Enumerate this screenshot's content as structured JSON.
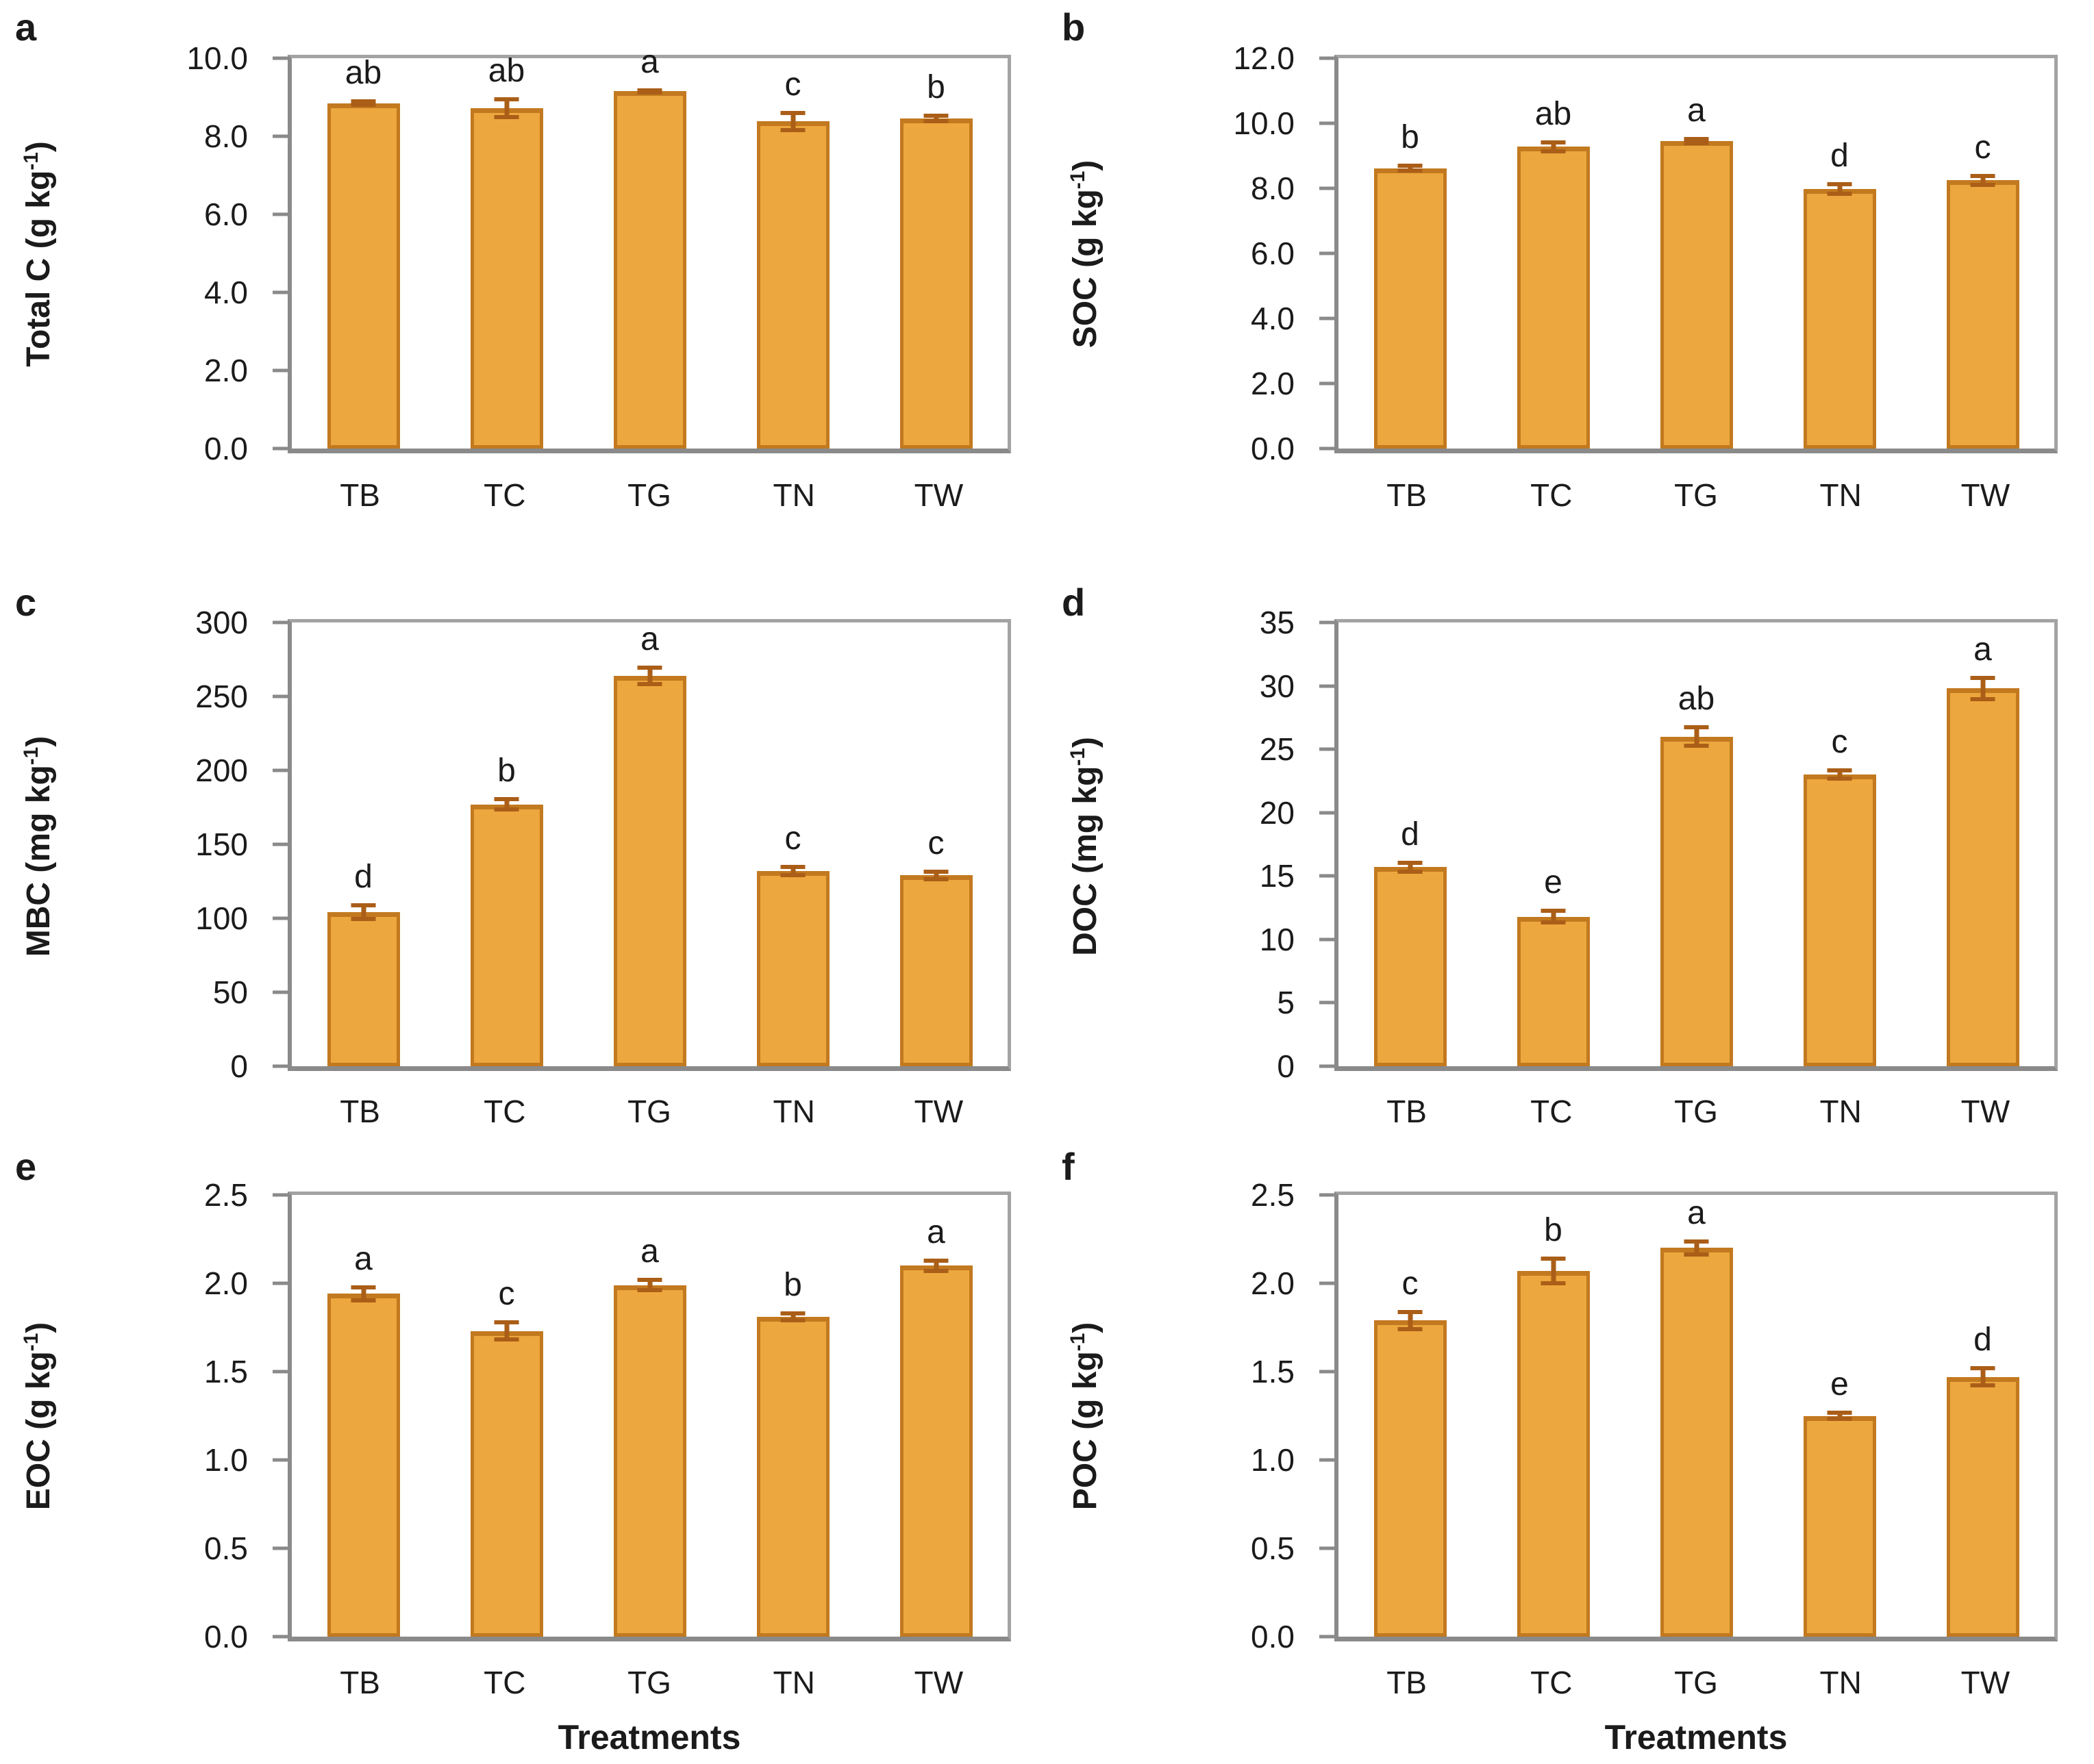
{
  "figure": {
    "colors": {
      "bar_fill": "#ECA73E",
      "bar_border": "#C2791F",
      "error_bar": "#AA5E17",
      "axis_gray": "#8A8A8A",
      "plot_border_gray": "#A3A3A3",
      "text": "#1B1B1B",
      "background": "#FFFFFF"
    },
    "treatments_axis_title": "Treatments",
    "panel_letters": [
      "a",
      "b",
      "c",
      "d",
      "e",
      "f"
    ]
  },
  "chart_data": [
    {
      "panel": "a",
      "type": "bar",
      "title": "",
      "ylabel": "Total C (g kg⁻¹)",
      "ylabel_pre": "Total C (g kg",
      "ylabel_sup": "-1",
      "ylabel_post": ")",
      "xlabel": "",
      "categories": [
        "TB",
        "TC",
        "TG",
        "TN",
        "TW"
      ],
      "values": [
        8.85,
        8.72,
        9.15,
        8.38,
        8.46
      ],
      "errors": [
        0.1,
        0.28,
        0.08,
        0.27,
        0.12
      ],
      "sig_letters": [
        "ab",
        "ab",
        "a",
        "c",
        "b"
      ],
      "ylim": [
        0,
        10
      ],
      "ytick_step": 2,
      "ytick_labels": [
        "0.0",
        "2.0",
        "4.0",
        "6.0",
        "8.0",
        "10.0"
      ],
      "grid": false,
      "legend": false
    },
    {
      "panel": "b",
      "type": "bar",
      "title": "",
      "ylabel": "SOC (g kg⁻¹)",
      "ylabel_pre": "SOC (g kg",
      "ylabel_sup": "-1",
      "ylabel_post": ")",
      "xlabel": "",
      "categories": [
        "TB",
        "TC",
        "TG",
        "TN",
        "TW"
      ],
      "values": [
        8.62,
        9.28,
        9.45,
        7.98,
        8.25
      ],
      "errors": [
        0.13,
        0.2,
        0.12,
        0.22,
        0.2
      ],
      "sig_letters": [
        "b",
        "ab",
        "a",
        "d",
        "c"
      ],
      "ylim": [
        0,
        12
      ],
      "ytick_step": 2,
      "ytick_labels": [
        "0.0",
        "2.0",
        "4.0",
        "6.0",
        "8.0",
        "10.0",
        "12.0"
      ],
      "grid": false,
      "legend": false
    },
    {
      "panel": "c",
      "type": "bar",
      "title": "",
      "ylabel": "MBC (mg kg⁻¹)",
      "ylabel_pre": "MBC (mg kg",
      "ylabel_sup": "-1",
      "ylabel_post": ")",
      "xlabel": "",
      "categories": [
        "TB",
        "TC",
        "TG",
        "TN",
        "TW"
      ],
      "values": [
        104,
        177,
        264,
        132,
        129
      ],
      "errors": [
        6,
        5,
        7,
        4,
        4
      ],
      "sig_letters": [
        "d",
        "b",
        "a",
        "c",
        "c"
      ],
      "ylim": [
        0,
        300
      ],
      "ytick_step": 50,
      "ytick_labels": [
        "0",
        "50",
        "100",
        "150",
        "200",
        "250",
        "300"
      ],
      "grid": false,
      "legend": false
    },
    {
      "panel": "d",
      "type": "bar",
      "title": "",
      "ylabel": "DOC (mg kg⁻¹)",
      "ylabel_pre": "DOC (mg kg",
      "ylabel_sup": "-1",
      "ylabel_post": ")",
      "xlabel": "",
      "categories": [
        "TB",
        "TC",
        "TG",
        "TN",
        "TW"
      ],
      "values": [
        15.7,
        11.8,
        26.0,
        23.0,
        29.8
      ],
      "errors": [
        0.5,
        0.6,
        0.9,
        0.5,
        1.0
      ],
      "sig_letters": [
        "d",
        "e",
        "ab",
        "c",
        "a"
      ],
      "ylim": [
        0,
        35
      ],
      "ytick_step": 5,
      "ytick_labels": [
        "0",
        "5",
        "10",
        "15",
        "20",
        "25",
        "30",
        "35"
      ],
      "grid": false,
      "legend": false
    },
    {
      "panel": "e",
      "type": "bar",
      "title": "",
      "ylabel": "EOC (g kg⁻¹)",
      "ylabel_pre": "EOC (g kg",
      "ylabel_sup": "-1",
      "ylabel_post": ")",
      "xlabel": "Treatments",
      "categories": [
        "TB",
        "TC",
        "TG",
        "TN",
        "TW"
      ],
      "values": [
        1.94,
        1.73,
        1.99,
        1.81,
        2.1
      ],
      "errors": [
        0.05,
        0.06,
        0.04,
        0.03,
        0.04
      ],
      "sig_letters": [
        "a",
        "c",
        "a",
        "b",
        "a"
      ],
      "ylim": [
        0,
        2.5
      ],
      "ytick_step": 0.5,
      "ytick_labels": [
        "0.0",
        "0.5",
        "1.0",
        "1.5",
        "2.0",
        "2.5"
      ],
      "grid": false,
      "legend": false
    },
    {
      "panel": "f",
      "type": "bar",
      "title": "",
      "ylabel": "POC (g kg⁻¹)",
      "ylabel_pre": "POC (g kg",
      "ylabel_sup": "-1",
      "ylabel_post": ")",
      "xlabel": "Treatments",
      "categories": [
        "TB",
        "TC",
        "TG",
        "TN",
        "TW"
      ],
      "values": [
        1.79,
        2.07,
        2.2,
        1.25,
        1.47
      ],
      "errors": [
        0.06,
        0.08,
        0.05,
        0.03,
        0.06
      ],
      "sig_letters": [
        "c",
        "b",
        "a",
        "e",
        "d"
      ],
      "ylim": [
        0,
        2.5
      ],
      "ytick_step": 0.5,
      "ytick_labels": [
        "0.0",
        "0.5",
        "1.0",
        "1.5",
        "2.0",
        "2.5"
      ],
      "grid": false,
      "legend": false
    }
  ]
}
